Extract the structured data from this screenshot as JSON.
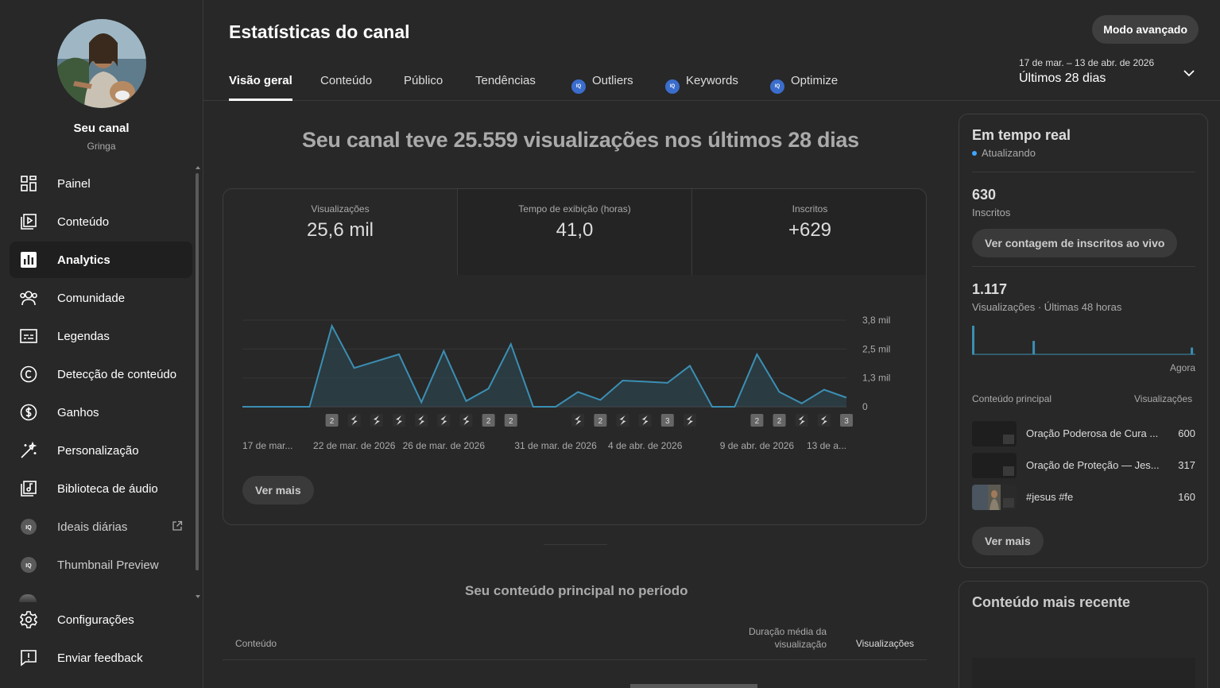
{
  "sidebar": {
    "channel_name": "Seu canal",
    "channel_handle": "Gringa",
    "items": [
      {
        "label": "Painel",
        "icon": "dashboard-icon"
      },
      {
        "label": "Conteúdo",
        "icon": "content-icon"
      },
      {
        "label": "Analytics",
        "icon": "analytics-icon",
        "active": true
      },
      {
        "label": "Comunidade",
        "icon": "community-icon"
      },
      {
        "label": "Legendas",
        "icon": "subtitles-icon"
      },
      {
        "label": "Detecção de conteúdo",
        "icon": "copyright-icon"
      },
      {
        "label": "Ganhos",
        "icon": "earn-icon"
      },
      {
        "label": "Personalização",
        "icon": "customization-icon"
      },
      {
        "label": "Biblioteca de áudio",
        "icon": "audio-library-icon"
      },
      {
        "label": "Ideais diárias",
        "icon": "vidiq-icon",
        "external": true
      },
      {
        "label": "Thumbnail Preview",
        "icon": "vidiq-icon"
      }
    ],
    "bottom_items": [
      {
        "label": "Configurações",
        "icon": "settings-icon"
      },
      {
        "label": "Enviar feedback",
        "icon": "feedback-icon"
      }
    ]
  },
  "header": {
    "title": "Estatísticas do canal",
    "advanced_button": "Modo avançado",
    "tabs": [
      {
        "label": "Visão geral",
        "active": true
      },
      {
        "label": "Conteúdo"
      },
      {
        "label": "Público"
      },
      {
        "label": "Tendências"
      },
      {
        "label": "Outliers",
        "vidiq": true
      },
      {
        "label": "Keywords",
        "vidiq": true
      },
      {
        "label": "Optimize",
        "vidiq": true
      }
    ],
    "date_range": "17 de mar. – 13 de abr. de 2026",
    "period": "Últimos 28 dias"
  },
  "overview": {
    "headline": "Seu canal teve 25.559 visualizações nos últimos 28 dias",
    "metrics": [
      {
        "label": "Visualizações",
        "value": "25,6 mil"
      },
      {
        "label": "Tempo de exibição (horas)",
        "value": "41,0"
      },
      {
        "label": "Inscritos",
        "value": "+629"
      }
    ],
    "see_more": "Ver mais"
  },
  "chart_data": {
    "type": "area",
    "y_ticks": [
      "3,8 mil",
      "2,5 mil",
      "1,3 mil",
      "0"
    ],
    "ylim": [
      0,
      3800
    ],
    "x_tick_labels": [
      "17 de mar...",
      "22 de mar. de 2026",
      "26 de mar. de 2026",
      "31 de mar. de 2026",
      "4 de abr. de 2026",
      "9 de abr. de 2026",
      "13 de a..."
    ],
    "x_tick_days": [
      0,
      5,
      9,
      14,
      18,
      23,
      27
    ],
    "series": [
      {
        "values": [
          0,
          0,
          0,
          0,
          3550,
          1700,
          2000,
          2300,
          200,
          2450,
          250,
          800,
          2750,
          0,
          0,
          650,
          300,
          1150,
          1100,
          1050,
          1800,
          0,
          0,
          2300,
          650,
          150,
          750,
          400
        ]
      }
    ],
    "markers": [
      "",
      "",
      "",
      "",
      "2",
      "s",
      "s",
      "s",
      "s",
      "s",
      "s",
      "2",
      "2",
      "",
      "",
      "s",
      "2",
      "s",
      "s",
      "3",
      "s",
      "",
      "",
      "2",
      "2",
      "s",
      "s",
      "3"
    ]
  },
  "top_content": {
    "title": "Seu conteúdo principal no período",
    "col_content": "Conteúdo",
    "col_duration": "Duração média da visualização",
    "col_views": "Visualizações"
  },
  "realtime": {
    "title": "Em tempo real",
    "status": "Atualizando",
    "subs_value": "630",
    "subs_label": "Inscritos",
    "live_button": "Ver contagem de inscritos ao vivo",
    "views_value": "1.117",
    "views_label": "Visualizações · Últimas 48 horas",
    "bars": [
      34,
      0,
      0,
      0,
      0,
      0,
      0,
      0,
      0,
      0,
      0,
      0,
      0,
      16,
      0,
      0,
      0,
      0,
      0,
      0,
      0,
      0,
      0,
      0,
      0,
      0,
      0,
      0,
      0,
      0,
      0,
      0,
      0,
      0,
      0,
      0,
      0,
      0,
      0,
      0,
      0,
      0,
      0,
      0,
      0,
      0,
      0,
      8
    ],
    "now_label": "Agora",
    "col_content": "Conteúdo principal",
    "col_views": "Visualizações",
    "rows": [
      {
        "title": "Oração Poderosa de Cura ...",
        "views": "600"
      },
      {
        "title": "Oração de Proteção — Jes...",
        "views": "317"
      },
      {
        "title": "#jesus #fe",
        "views": "160"
      }
    ],
    "see_more": "Ver mais"
  },
  "recent": {
    "title": "Conteúdo mais recente"
  },
  "colors": {
    "accent_line": "#3b8fb3",
    "accent_fill": "#2d4b58",
    "live_dot": "#3ea6ff",
    "vidiq_badge": "#3a6dcc"
  }
}
